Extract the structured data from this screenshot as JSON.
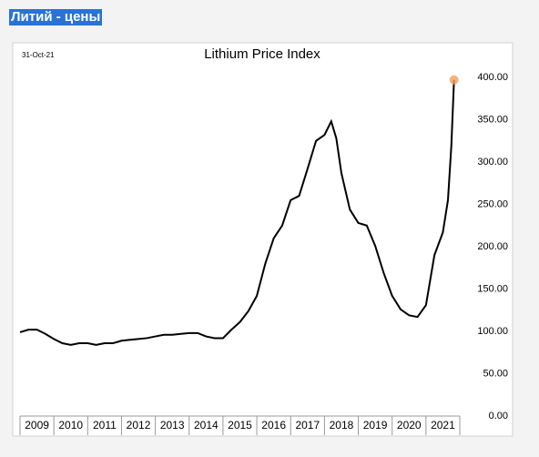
{
  "header": {
    "title": "Литий - цены"
  },
  "chart_data": {
    "type": "line",
    "title": "Lithium Price Index",
    "annotation": "31-Oct-21",
    "categories": [
      "2009",
      "2010",
      "2011",
      "2012",
      "2013",
      "2014",
      "2015",
      "2016",
      "2017",
      "2018",
      "2019",
      "2020",
      "2021"
    ],
    "xlim": [
      2009,
      2022
    ],
    "ylim": [
      0,
      400
    ],
    "yticks": [
      {
        "value": 0,
        "label": "0.00"
      },
      {
        "value": 50,
        "label": "50.00"
      },
      {
        "value": 100,
        "label": "100.00"
      },
      {
        "value": 150,
        "label": "150.00"
      },
      {
        "value": 200,
        "label": "200.00"
      },
      {
        "value": 250,
        "label": "250.00"
      },
      {
        "value": 300,
        "label": "300.00"
      },
      {
        "value": 350,
        "label": "350.00"
      },
      {
        "value": 400,
        "label": "400.00"
      }
    ],
    "series": [
      {
        "name": "Lithium Price Index",
        "color": "#000000",
        "marker_color": "#f0a060",
        "x": [
          2009.0,
          2009.25,
          2009.5,
          2009.75,
          2010.0,
          2010.25,
          2010.5,
          2010.75,
          2011.0,
          2011.25,
          2011.5,
          2011.75,
          2012.0,
          2012.25,
          2012.5,
          2012.75,
          2013.0,
          2013.25,
          2013.5,
          2013.75,
          2014.0,
          2014.25,
          2014.5,
          2014.75,
          2015.0,
          2015.25,
          2015.5,
          2015.75,
          2016.0,
          2016.25,
          2016.5,
          2016.75,
          2017.0,
          2017.25,
          2017.5,
          2017.75,
          2018.0,
          2018.2,
          2018.35,
          2018.5,
          2018.75,
          2019.0,
          2019.25,
          2019.5,
          2019.75,
          2020.0,
          2020.25,
          2020.5,
          2020.75,
          2021.0,
          2021.25,
          2021.5,
          2021.65,
          2021.75,
          2021.83
        ],
        "values": [
          99,
          102,
          102,
          97,
          91,
          86,
          84,
          86,
          86,
          84,
          86,
          86,
          89,
          90,
          91,
          92,
          94,
          96,
          96,
          97,
          98,
          98,
          94,
          92,
          92,
          102,
          111,
          124,
          142,
          180,
          210,
          225,
          255,
          260,
          292,
          325,
          332,
          348,
          328,
          287,
          244,
          228,
          225,
          201,
          169,
          142,
          126,
          119,
          117,
          131,
          190,
          217,
          255,
          319,
          397
        ]
      }
    ]
  }
}
